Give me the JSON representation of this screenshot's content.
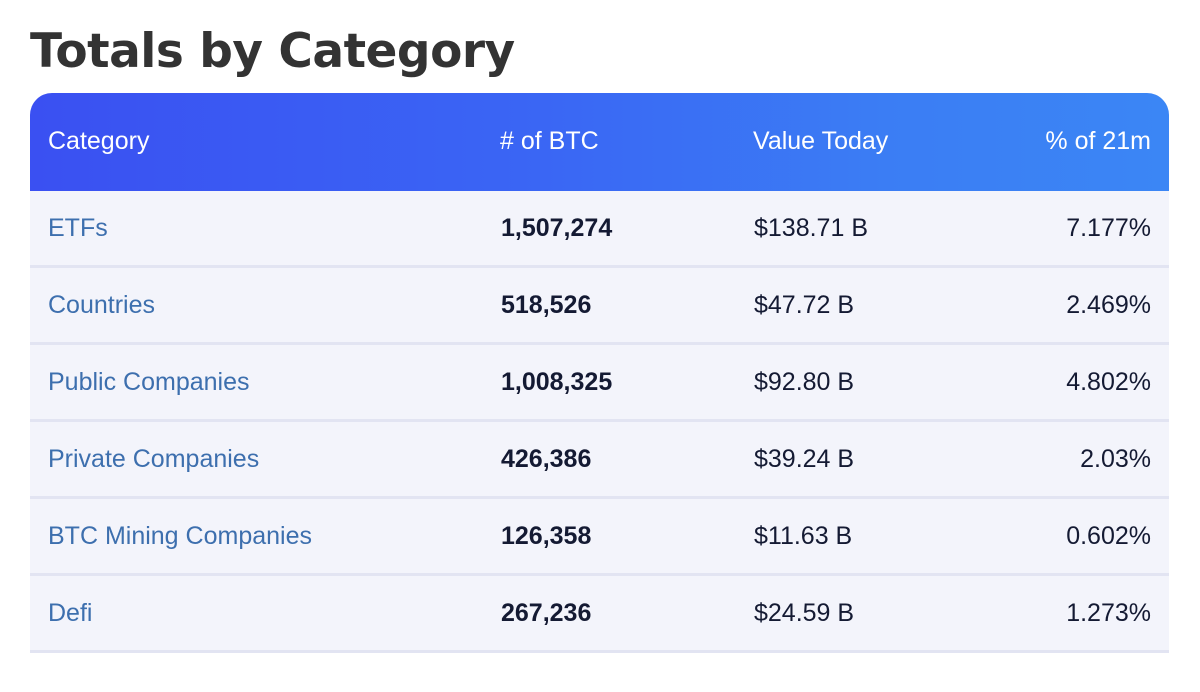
{
  "title": "Totals by Category",
  "table": {
    "headers": {
      "category": "Category",
      "btc": "# of BTC",
      "value": "Value Today",
      "percent": "% of 21m"
    },
    "rows": [
      {
        "category": "ETFs",
        "btc": "1,507,274",
        "value": "$138.71 B",
        "percent": "7.177%"
      },
      {
        "category": "Countries",
        "btc": "518,526",
        "value": "$47.72 B",
        "percent": "2.469%"
      },
      {
        "category": "Public Companies",
        "btc": "1,008,325",
        "value": "$92.80 B",
        "percent": "4.802%"
      },
      {
        "category": "Private Companies",
        "btc": "426,386",
        "value": "$39.24 B",
        "percent": "2.03%"
      },
      {
        "category": "BTC Mining Companies",
        "btc": "126,358",
        "value": "$11.63 B",
        "percent": "0.602%"
      },
      {
        "category": "Defi",
        "btc": "267,236",
        "value": "$24.59 B",
        "percent": "1.273%"
      }
    ]
  },
  "colors": {
    "header_gradient_start": "#3a50f2",
    "header_gradient_end": "#3b86f5",
    "category_link": "#3d6fae",
    "row_background": "#f3f4fb",
    "title": "#333333"
  }
}
